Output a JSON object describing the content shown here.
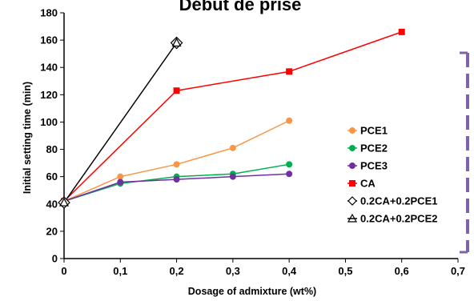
{
  "chart_data": {
    "type": "line",
    "title": "Début de prise",
    "xlabel": "Dosage of admixture (wt%)",
    "ylabel": "Initial setting time (min)",
    "xlim": [
      0,
      0.7
    ],
    "ylim": [
      0,
      180
    ],
    "x_ticks": [
      0,
      0.1,
      0.2,
      0.3,
      0.4,
      0.5,
      0.6,
      0.7
    ],
    "x_tick_labels": [
      "0",
      "0,1",
      "0,2",
      "0,3",
      "0,4",
      "0,5",
      "0,6",
      "0,7"
    ],
    "y_ticks": [
      0,
      20,
      40,
      60,
      80,
      100,
      120,
      140,
      160,
      180
    ],
    "y_tick_labels": [
      "0",
      "20",
      "40",
      "60",
      "80",
      "100",
      "120",
      "140",
      "160",
      "180"
    ],
    "grid": false,
    "legend_position": "right",
    "series": [
      {
        "name": "PCE1",
        "color": "#f79646",
        "marker": "circle",
        "x": [
          0,
          0.1,
          0.2,
          0.3,
          0.4
        ],
        "y": [
          42,
          60,
          69,
          81,
          101
        ]
      },
      {
        "name": "PCE2",
        "color": "#00b050",
        "marker": "circle",
        "x": [
          0,
          0.1,
          0.2,
          0.3,
          0.4
        ],
        "y": [
          42,
          55,
          60,
          62,
          69
        ]
      },
      {
        "name": "PCE3",
        "color": "#7030a0",
        "marker": "circle",
        "x": [
          0,
          0.1,
          0.2,
          0.3,
          0.4
        ],
        "y": [
          42,
          56,
          58,
          60,
          62
        ]
      },
      {
        "name": "CA",
        "color": "#ff0000",
        "marker": "square",
        "x": [
          0,
          0.2,
          0.4,
          0.6
        ],
        "y": [
          42,
          123,
          137,
          166
        ]
      },
      {
        "name": "0.2CA+0.2PCE1",
        "color": "#000000",
        "marker": "diamond-open",
        "x": [
          0,
          0.2
        ],
        "y": [
          41,
          158
        ]
      },
      {
        "name": "0.2CA+0.2PCE2",
        "color": "#000000",
        "marker": "triangle-open",
        "x": [
          0,
          0.2
        ],
        "y": [
          41,
          158
        ]
      }
    ],
    "decoration": {
      "bracket_color": "#7f62a8"
    }
  }
}
